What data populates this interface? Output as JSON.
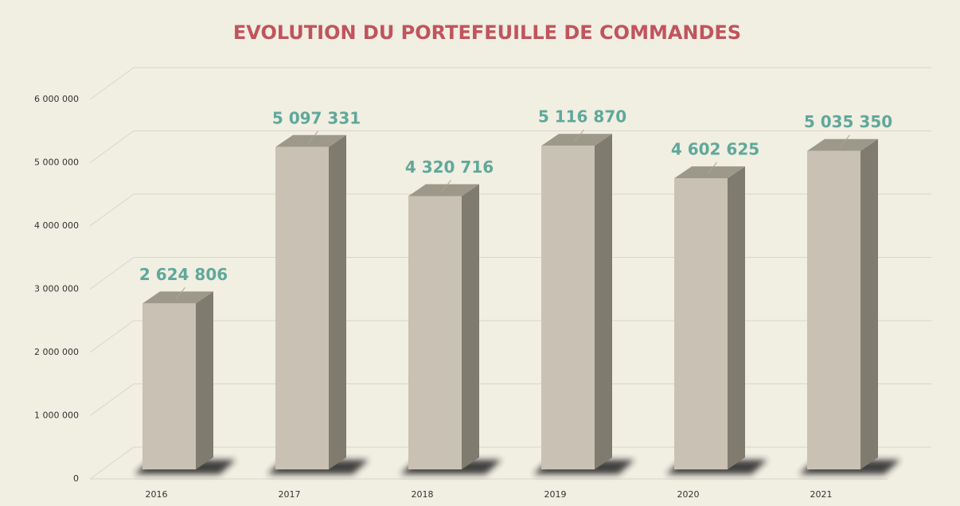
{
  "chart_data": {
    "type": "bar3d",
    "title": "EVOLUTION DU PORTEFEUILLE DE COMMANDES",
    "categories": [
      "2016",
      "2017",
      "2018",
      "2019",
      "2020",
      "2021"
    ],
    "values": [
      2624806,
      5097331,
      4320716,
      5116870,
      4602625,
      5035350
    ],
    "value_labels": [
      "2 624 806",
      "5 097 331",
      "4 320 716",
      "5 116 870",
      "4 602 625",
      "5 035 350"
    ],
    "color": "#c9c1b3",
    "ylim": [
      0,
      6000000
    ],
    "yticks": [
      0,
      {
        "value": 1000000,
        "label": "1 000 000"
      },
      {
        "value": 2000000,
        "label": "2 000 000"
      },
      {
        "value": 3000000,
        "label": "3 000 000"
      },
      {
        "value": 4000000,
        "label": "4 000 000"
      },
      {
        "value": 5000000,
        "label": "5 000 000"
      },
      {
        "value": 6000000,
        "label": "6 000 000"
      }
    ],
    "grid": true
  }
}
